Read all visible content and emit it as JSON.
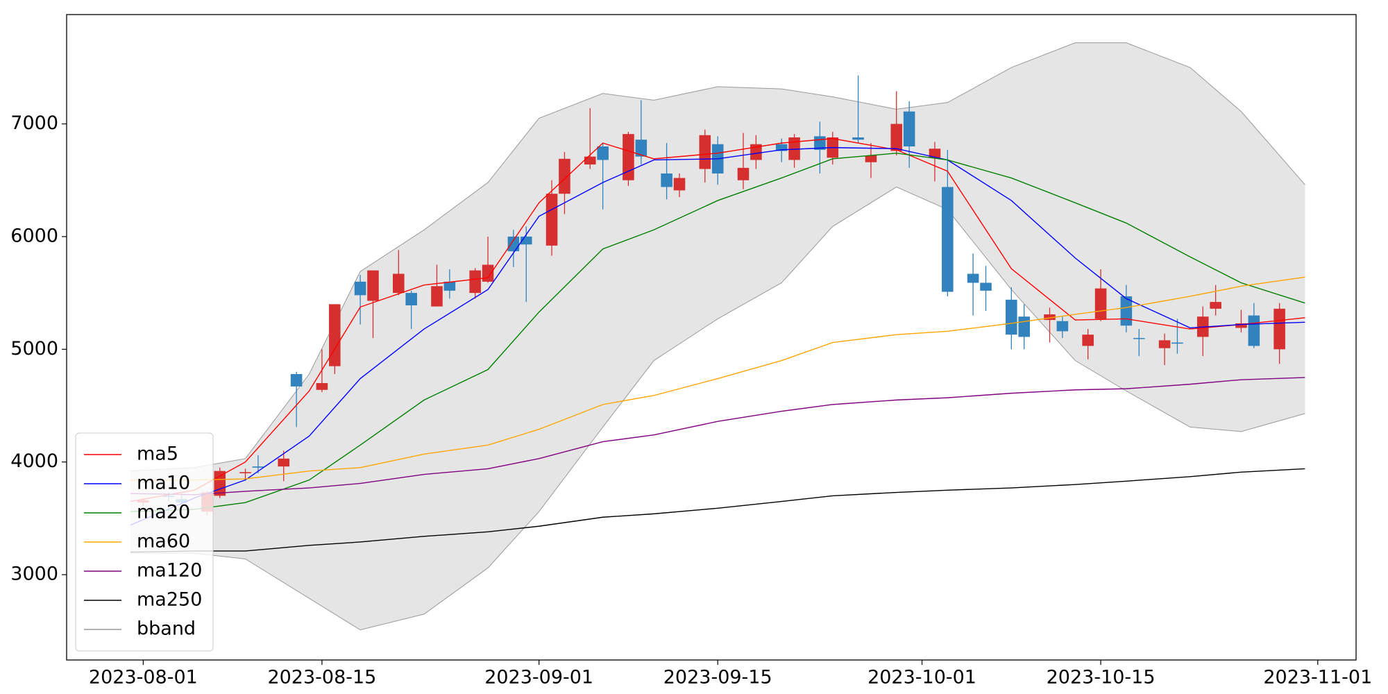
{
  "chart_data": {
    "type": "candlestick",
    "x": [
      "2023-08-01",
      "2023-08-03",
      "2023-08-04",
      "2023-08-06",
      "2023-08-07",
      "2023-08-09",
      "2023-08-10",
      "2023-08-12",
      "2023-08-13",
      "2023-08-15",
      "2023-08-16",
      "2023-08-18",
      "2023-08-19",
      "2023-08-21",
      "2023-08-22",
      "2023-08-24",
      "2023-08-25",
      "2023-08-27",
      "2023-08-28",
      "2023-08-30",
      "2023-08-31",
      "2023-09-02",
      "2023-09-03",
      "2023-09-05",
      "2023-09-06",
      "2023-09-08",
      "2023-09-09",
      "2023-09-11",
      "2023-09-12",
      "2023-09-14",
      "2023-09-15",
      "2023-09-17",
      "2023-09-18",
      "2023-09-20",
      "2023-09-21",
      "2023-09-23",
      "2023-09-24",
      "2023-09-26",
      "2023-09-27",
      "2023-09-29",
      "2023-09-30",
      "2023-10-02",
      "2023-10-03",
      "2023-10-05",
      "2023-10-06",
      "2023-10-08",
      "2023-10-09",
      "2023-10-11",
      "2023-10-12",
      "2023-10-14",
      "2023-10-15",
      "2023-10-17",
      "2023-10-18",
      "2023-10-20",
      "2023-10-21",
      "2023-10-23",
      "2023-10-24",
      "2023-10-26",
      "2023-10-27",
      "2023-10-29"
    ],
    "open": [
      3640,
      3700,
      3670,
      3560,
      3700,
      3900,
      3960,
      3960,
      4780,
      4640,
      4850,
      5600,
      5430,
      5500,
      5500,
      5380,
      5600,
      5500,
      5600,
      6000,
      6000,
      5920,
      6380,
      6640,
      6800,
      6500,
      6860,
      6560,
      6410,
      6600,
      6820,
      6500,
      6680,
      6820,
      6680,
      6890,
      6700,
      6880,
      6660,
      6760,
      7110,
      6700,
      6440,
      5670,
      5590,
      5440,
      5290,
      5260,
      5250,
      5030,
      5270,
      5470,
      5100,
      5010,
      5060,
      5110,
      5360,
      5190,
      5300,
      5000
    ],
    "high": [
      3680,
      3730,
      3720,
      3740,
      3950,
      3940,
      4060,
      4100,
      4800,
      5000,
      5400,
      5660,
      5700,
      5880,
      5520,
      5750,
      5710,
      5720,
      6000,
      6060,
      6090,
      6500,
      6750,
      7140,
      6830,
      6930,
      7210,
      6830,
      6560,
      6950,
      6890,
      6920,
      6900,
      6870,
      6910,
      7020,
      6930,
      7430,
      6830,
      7290,
      7200,
      6840,
      6770,
      5850,
      5740,
      5550,
      5400,
      5370,
      5290,
      5180,
      5710,
      5570,
      5180,
      5140,
      5270,
      5380,
      5570,
      5350,
      5410,
      5410
    ],
    "low": [
      3610,
      3650,
      3620,
      3530,
      3680,
      3840,
      3900,
      3830,
      4310,
      4620,
      4780,
      5220,
      5100,
      5480,
      5180,
      5380,
      5450,
      5450,
      5590,
      5730,
      5420,
      5830,
      6200,
      6600,
      6240,
      6450,
      6640,
      6330,
      6350,
      6480,
      6460,
      6420,
      6600,
      6660,
      6610,
      6560,
      6640,
      6830,
      6520,
      6720,
      6610,
      6490,
      5470,
      5300,
      5340,
      5000,
      5000,
      5060,
      5100,
      4910,
      5250,
      5150,
      4940,
      4860,
      4960,
      4940,
      5300,
      5150,
      5010,
      4870
    ],
    "close": [
      3660,
      3690,
      3640,
      3730,
      3920,
      3910,
      3950,
      4030,
      4670,
      4700,
      5400,
      5480,
      5700,
      5670,
      5390,
      5560,
      5520,
      5700,
      5750,
      5870,
      5930,
      6380,
      6690,
      6710,
      6680,
      6910,
      6710,
      6440,
      6520,
      6900,
      6560,
      6610,
      6820,
      6760,
      6880,
      6770,
      6880,
      6860,
      6720,
      7000,
      6800,
      6780,
      5510,
      5590,
      5520,
      5130,
      5110,
      5310,
      5160,
      5130,
      5540,
      5210,
      5095,
      5080,
      5050,
      5290,
      5420,
      5230,
      5030,
      5360
    ],
    "up_color": "#d62f2f",
    "down_color": "#3182bd",
    "lines": {
      "x": [
        "2023-07-31",
        "2023-08-05",
        "2023-08-09",
        "2023-08-14",
        "2023-08-18",
        "2023-08-23",
        "2023-08-28",
        "2023-09-01",
        "2023-09-06",
        "2023-09-10",
        "2023-09-15",
        "2023-09-20",
        "2023-09-24",
        "2023-09-29",
        "2023-10-03",
        "2023-10-08",
        "2023-10-13",
        "2023-10-17",
        "2023-10-22",
        "2023-10-26",
        "2023-10-31"
      ],
      "series": [
        {
          "name": "ma5",
          "color": "#ff0000",
          "values": [
            3650,
            3750,
            4000,
            4630,
            5375,
            5570,
            5635,
            6300,
            6830,
            6690,
            6740,
            6830,
            6870,
            6770,
            6580,
            5715,
            5260,
            5270,
            5180,
            5220,
            5280
          ]
        },
        {
          "name": "ma10",
          "color": "#0000ff",
          "values": [
            3440,
            3680,
            3840,
            4230,
            4740,
            5180,
            5530,
            6180,
            6480,
            6680,
            6690,
            6770,
            6790,
            6780,
            6680,
            6320,
            5810,
            5450,
            5190,
            5220,
            5240
          ]
        },
        {
          "name": "ma20",
          "color": "#008000",
          "values": [
            3560,
            3580,
            3640,
            3840,
            4150,
            4550,
            4820,
            5330,
            5890,
            6060,
            6320,
            6520,
            6690,
            6740,
            6680,
            6520,
            6300,
            6120,
            5820,
            5590,
            5410
          ]
        },
        {
          "name": "ma60",
          "color": "#ffa500",
          "values": [
            3840,
            3840,
            3850,
            3920,
            3950,
            4070,
            4150,
            4290,
            4510,
            4590,
            4740,
            4900,
            5060,
            5130,
            5160,
            5230,
            5310,
            5370,
            5470,
            5560,
            5640
          ]
        },
        {
          "name": "ma120",
          "color": "#800080",
          "values": [
            3720,
            3710,
            3740,
            3770,
            3810,
            3890,
            3940,
            4030,
            4180,
            4240,
            4360,
            4450,
            4510,
            4550,
            4570,
            4610,
            4640,
            4650,
            4690,
            4730,
            4750
          ]
        },
        {
          "name": "ma250",
          "color": "#000000",
          "values": [
            3200,
            3210,
            3210,
            3260,
            3290,
            3340,
            3380,
            3430,
            3510,
            3540,
            3590,
            3650,
            3700,
            3730,
            3750,
            3770,
            3800,
            3830,
            3870,
            3910,
            3940
          ]
        }
      ]
    },
    "band": {
      "name": "bband",
      "color": "#999999",
      "fill": "#e5e5e5",
      "upper": [
        3920,
        3950,
        4030,
        4780,
        5690,
        6060,
        6480,
        7050,
        7270,
        7210,
        7330,
        7310,
        7240,
        7130,
        7190,
        7500,
        7720,
        7720,
        7500,
        7110,
        6460
      ],
      "lower": [
        3190,
        3190,
        3140,
        2790,
        2510,
        2650,
        3060,
        3560,
        4310,
        4900,
        5270,
        5590,
        6090,
        6440,
        6240,
        5530,
        4900,
        4630,
        4310,
        4270,
        4430
      ]
    },
    "xlim": [
      "2023-07-26",
      "2023-11-04"
    ],
    "xticks": [
      "2023-08-01",
      "2023-08-15",
      "2023-09-01",
      "2023-09-15",
      "2023-10-01",
      "2023-10-15",
      "2023-11-01"
    ],
    "ylim": [
      2243,
      7970
    ],
    "yticks": [
      3000,
      4000,
      5000,
      6000,
      7000
    ],
    "grid": false,
    "legend": "lower left"
  }
}
